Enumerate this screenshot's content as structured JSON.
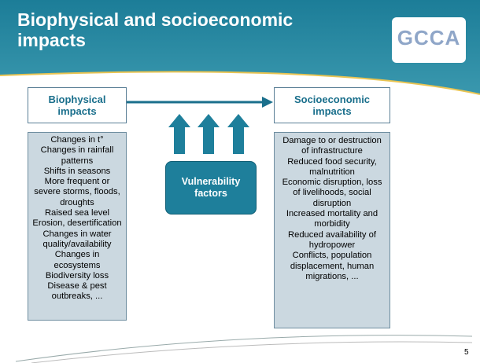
{
  "header": {
    "title": "Biophysical and socioeconomic impacts",
    "logo": "GCCA"
  },
  "left": {
    "title": "Biophysical impacts",
    "items": [
      "Changes in t°",
      "Changes in rainfall patterns",
      "Shifts in seasons",
      "More frequent or severe storms, floods, droughts",
      "Raised sea level",
      "Erosion, desertification",
      "Changes in water quality/availability",
      "Changes in ecosystems",
      "Biodiversity loss",
      "Disease & pest outbreaks, ..."
    ]
  },
  "center": {
    "label": "Vulnerability factors"
  },
  "right": {
    "title": "Socioeconomic impacts",
    "items": [
      "Damage to or destruction of infrastructure",
      "Reduced food security, malnutrition",
      "Economic disruption, loss of livelihoods, social disruption",
      "Increased mortality and morbidity",
      "Reduced availability of hydropower",
      "Conflicts, population displacement, human migrations, ..."
    ]
  },
  "footer": {
    "page": "5"
  }
}
